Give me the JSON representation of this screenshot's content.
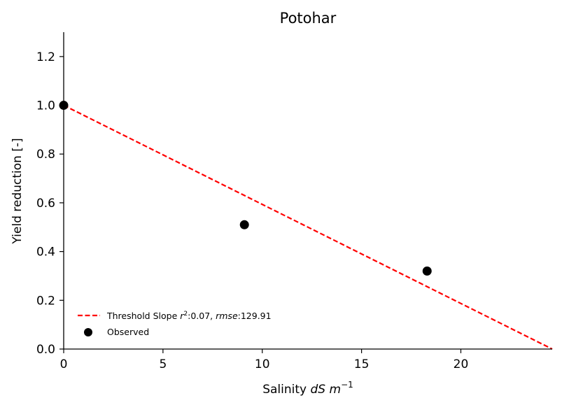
{
  "chart_data": {
    "type": "scatter",
    "title": "Potohar",
    "xlabel_prefix": "Salinity ",
    "xlabel_math": "dS m",
    "xlabel_sup": "−1",
    "ylabel": "Yield reduction [-]",
    "xlim": [
      0,
      24.6
    ],
    "ylim": [
      0,
      1.3
    ],
    "xticks": [
      0,
      5,
      10,
      15,
      20
    ],
    "yticks": [
      0.0,
      0.2,
      0.4,
      0.6,
      0.8,
      1.0,
      1.2
    ],
    "grid": false,
    "legend_position": "lower-left",
    "series": [
      {
        "name": "Threshold Slope r²:0.07, rmse:129.91",
        "kind": "line",
        "style": "dashed",
        "color": "#ff0000",
        "x": [
          0,
          24.6
        ],
        "y": [
          1.0,
          0.0
        ]
      },
      {
        "name": "Observed",
        "kind": "scatter",
        "color": "#000000",
        "x": [
          0,
          9.1,
          18.3
        ],
        "y": [
          1.0,
          0.51,
          0.32
        ]
      }
    ],
    "legend": {
      "line_label_prefix": "Threshold Slope ",
      "r_symbol": "r",
      "r_sup": "2",
      "r_value": ":0.07, ",
      "rmse_symbol": "rmse",
      "rmse_value": ":129.91",
      "scatter_label": "Observed"
    }
  }
}
